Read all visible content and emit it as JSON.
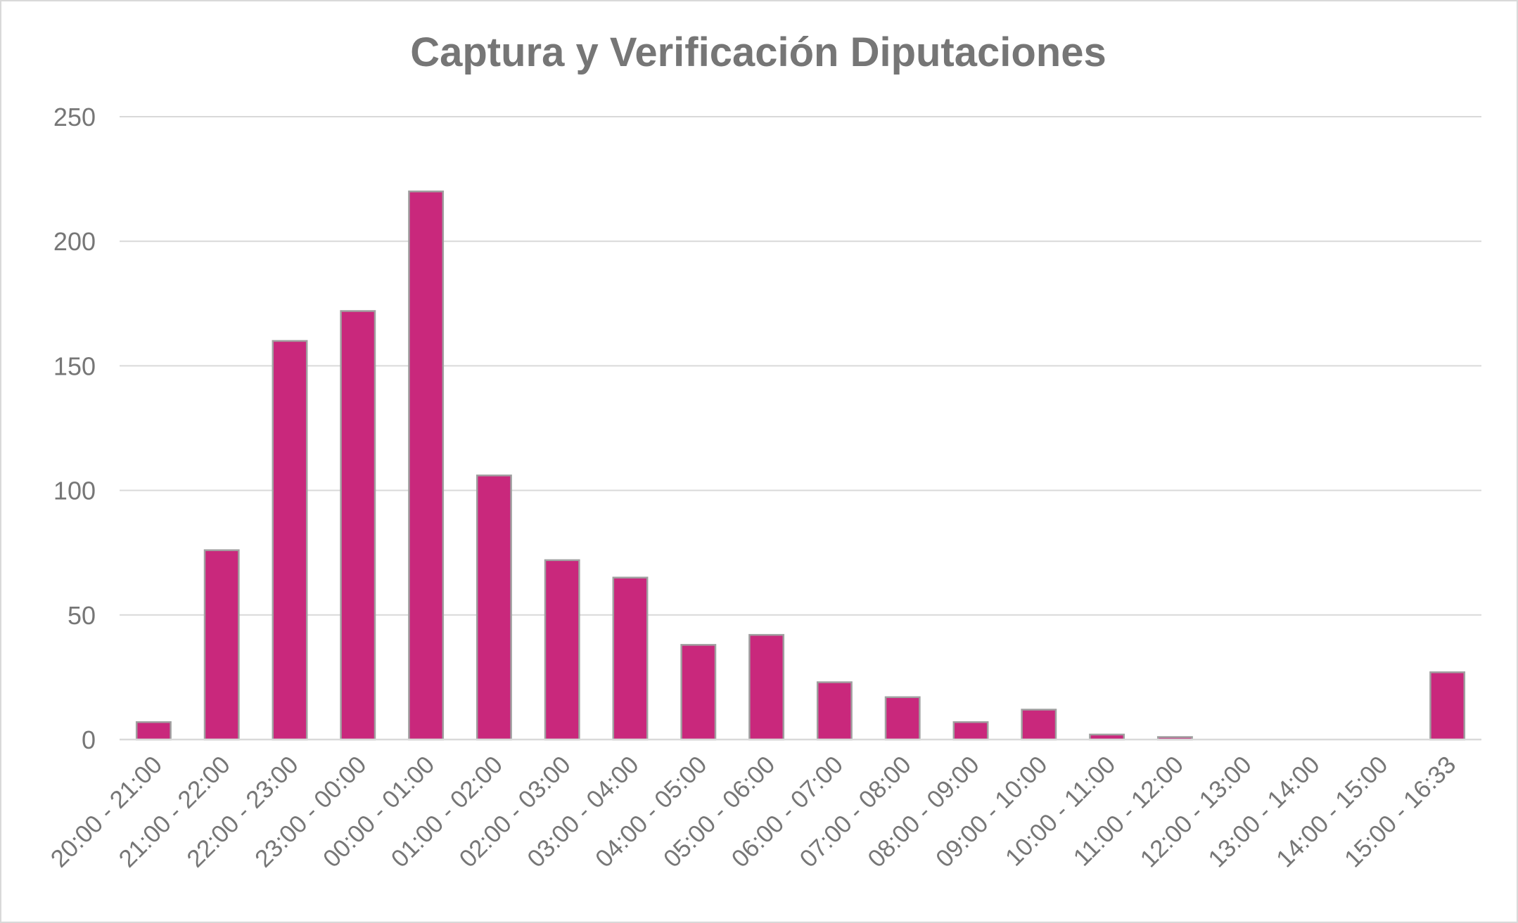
{
  "chart_data": {
    "type": "bar",
    "title": "Captura y Verificación Diputaciones",
    "xlabel": "",
    "ylabel": "",
    "categories": [
      "20:00 - 21:00",
      "21:00 - 22:00",
      "22:00 - 23:00",
      "23:00 - 00:00",
      "00:00 - 01:00",
      "01:00 - 02:00",
      "02:00 - 03:00",
      "03:00 - 04:00",
      "04:00 - 05:00",
      "05:00 - 06:00",
      "06:00 - 07:00",
      "07:00 - 08:00",
      "08:00 - 09:00",
      "09:00 - 10:00",
      "10:00 - 11:00",
      "11:00 - 12:00",
      "12:00 - 13:00",
      "13:00 - 14:00",
      "14:00 - 15:00",
      "15:00 - 16:33"
    ],
    "values": [
      7,
      76,
      160,
      172,
      220,
      106,
      72,
      65,
      38,
      42,
      23,
      17,
      7,
      12,
      2,
      1,
      0,
      0,
      0,
      27
    ],
    "ylim": [
      0,
      250
    ],
    "yticks": [
      "0",
      "50",
      "100",
      "150",
      "200",
      "250"
    ],
    "grid": true,
    "legend": "none",
    "colors": {
      "bar": "#c9287c",
      "bar_border": "#a0a0a0",
      "grid": "#d9d9d9",
      "text": "#767676"
    }
  }
}
